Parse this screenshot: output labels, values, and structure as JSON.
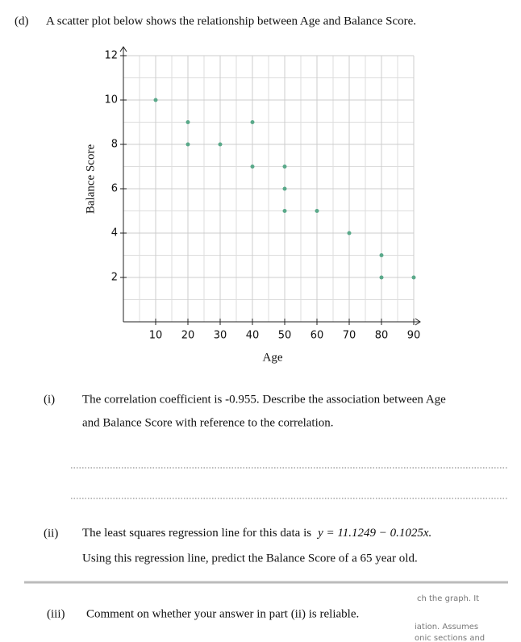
{
  "header": {
    "label": "(d)",
    "text": "A scatter plot below shows the relationship between Age and Balance Score."
  },
  "chart_data": {
    "type": "scatter",
    "x_label": "Age",
    "y_label": "Balance Score",
    "x": [
      10,
      20,
      20,
      30,
      40,
      40,
      50,
      50,
      50,
      60,
      70,
      80,
      80,
      90
    ],
    "y": [
      10,
      9,
      8,
      8,
      9,
      7,
      7,
      6,
      5,
      5,
      4,
      3,
      2,
      2
    ],
    "color": "#5aa98a",
    "xlim": [
      0,
      92
    ],
    "ylim": [
      0,
      12.4
    ],
    "xticks": [
      10,
      20,
      30,
      40,
      50,
      60,
      70,
      80,
      90
    ],
    "yticks": [
      2,
      4,
      6,
      8,
      10,
      12
    ],
    "grid": true
  },
  "questions": [
    {
      "label": "(i)",
      "lines": [
        "The correlation coefficient is -0.955. Describe the association between Age",
        "and Balance Score with reference to the correlation."
      ]
    },
    {
      "label": "(ii)",
      "text": "The least squares regression line for this data is",
      "equation": "y = 11.1249 − 0.1025x.",
      "text2": "Using this regression line, predict the Balance Score of a 65 year old."
    },
    {
      "label": "(iii)",
      "text": "Comment on whether your answer in part (ii) is reliable."
    }
  ],
  "overlay": [
    "ch the graph.  It",
    "iation. Assumes",
    "onic sections and"
  ]
}
